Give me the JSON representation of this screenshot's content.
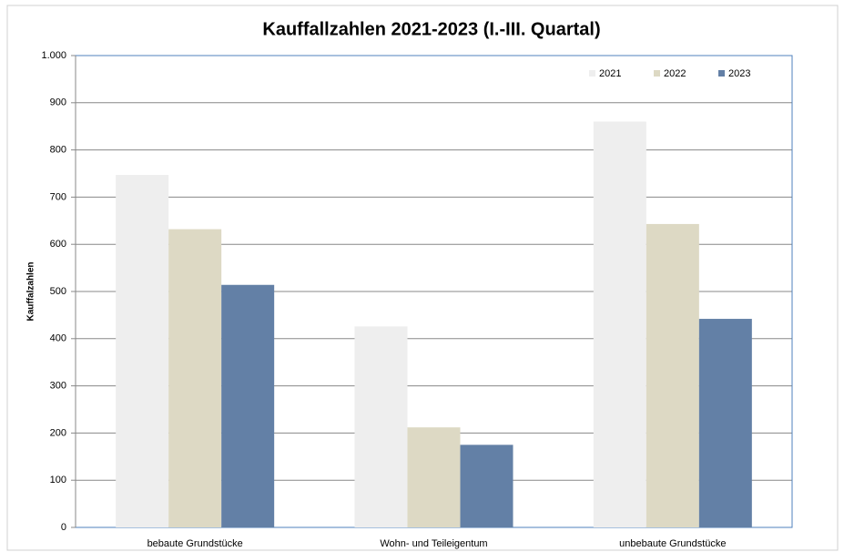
{
  "chart_data": {
    "type": "bar",
    "title": "Kauffallzahlen 2021-2023 (I.-III. Quartal)",
    "y_label": "Kauffalzahlen",
    "categories": [
      "bebaute Grundstücke",
      "Wohn- und Teileigentum",
      "unbebaute Grundstücke"
    ],
    "series": [
      {
        "name": "2021",
        "color": "#eeeeee",
        "values": [
          747,
          426,
          860
        ]
      },
      {
        "name": "2022",
        "color": "#ddd9c4",
        "values": [
          632,
          212,
          643
        ]
      },
      {
        "name": "2023",
        "color": "#6380a6",
        "values": [
          514,
          175,
          442
        ]
      }
    ],
    "ylim": [
      0,
      1000
    ],
    "yticks": [
      0,
      100,
      200,
      300,
      400,
      500,
      600,
      700,
      800,
      900,
      {
        "value": 1000,
        "label": "1.000"
      }
    ],
    "grid": true,
    "legend": "top-right"
  }
}
